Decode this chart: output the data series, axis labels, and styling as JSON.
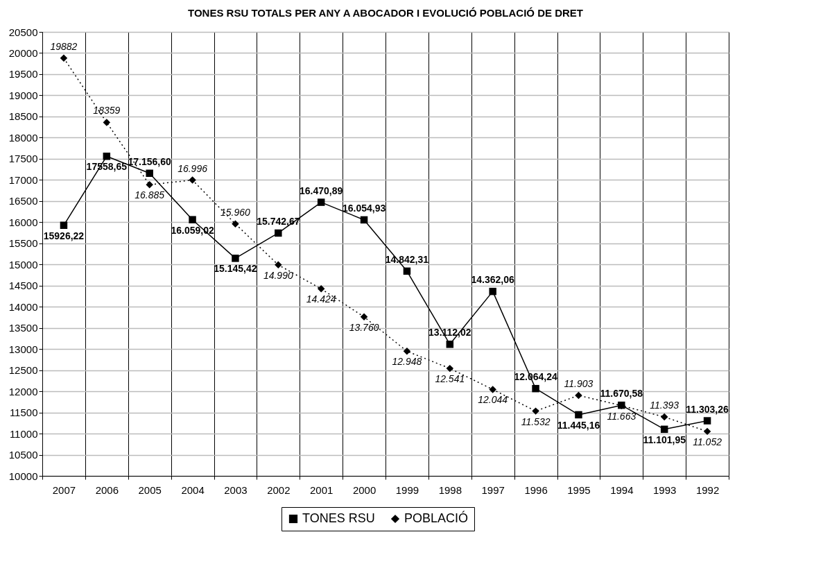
{
  "chart_data": {
    "type": "line",
    "title": "TONES RSU TOTALS PER ANY A ABOCADOR I EVOLUCIÓ POBLACIÓ DE DRET",
    "categories": [
      "2007",
      "2006",
      "2005",
      "2004",
      "2003",
      "2002",
      "2001",
      "2000",
      "1999",
      "1998",
      "1997",
      "1996",
      "1995",
      "1994",
      "1993",
      "1992"
    ],
    "series": [
      {
        "name": "TONES RSU",
        "color": "#000000",
        "marker": "square",
        "line_style": "solid",
        "values": [
          15926.22,
          17558.65,
          17156.6,
          16059.02,
          15145.42,
          15742.67,
          16470.89,
          16054.93,
          14842.31,
          13112.02,
          14362.06,
          12064.24,
          11445.16,
          11670.58,
          11101.95,
          11303.26
        ],
        "value_labels": [
          "15926,22",
          "17558,65",
          "17.156,60",
          "16.059,02",
          "15.145,42",
          "15.742,67",
          "16.470,89",
          "16.054,93",
          "14.842,31",
          "13.112,02",
          "14.362,06",
          "12.064,24",
          "11.445,16",
          "11.670,58",
          "11.101,95",
          "11.303,26"
        ]
      },
      {
        "name": "POBLACIÓ",
        "color": "#000000",
        "marker": "diamond",
        "line_style": "dotted",
        "values": [
          19882,
          18359,
          16885,
          16996,
          15960,
          14990,
          14424,
          13760,
          12948,
          12541,
          12044,
          11532,
          11903,
          11663,
          11393,
          11052
        ],
        "value_labels": [
          "19882",
          "18359",
          "16.885",
          "16.996",
          "15.960",
          "14.990",
          "14.424",
          "13.760",
          "12.948",
          "12.541",
          "12.044",
          "11.532",
          "11.903",
          "11.663",
          "11.393",
          "11.052"
        ]
      }
    ],
    "ylim": [
      10000,
      20500
    ],
    "yticks": [
      10000,
      10500,
      11000,
      11500,
      12000,
      12500,
      13000,
      13500,
      14000,
      14500,
      15000,
      15500,
      16000,
      16500,
      17000,
      17500,
      18000,
      18500,
      19000,
      19500,
      20000,
      20500
    ],
    "grid": true,
    "legend": "bottom"
  }
}
